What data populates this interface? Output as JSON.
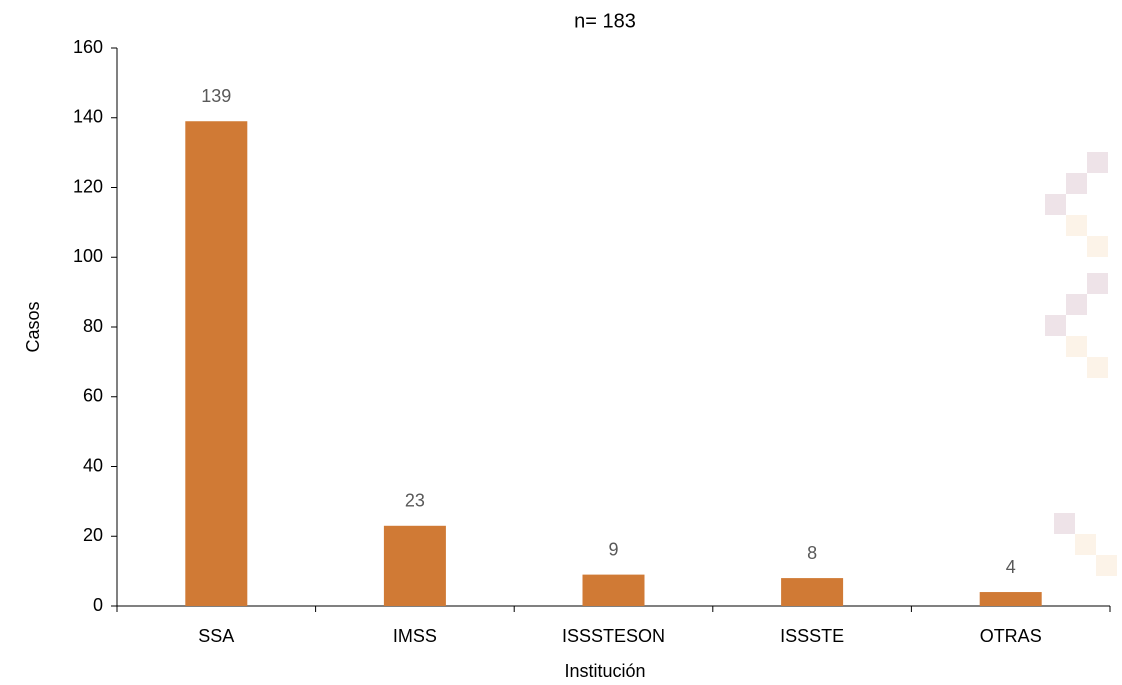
{
  "chart_data": {
    "type": "bar",
    "title": "n= 183",
    "x_label": "Institución",
    "y_label": "Casos",
    "categories": [
      "SSA",
      "IMSS",
      "ISSSTESON",
      "ISSSTE",
      "OTRAS"
    ],
    "values": [
      139,
      23,
      9,
      8,
      4
    ],
    "color": "#d07a35",
    "ylim": [
      0,
      160
    ],
    "yticks": [
      0,
      20,
      40,
      60,
      80,
      100,
      120,
      140,
      160
    ],
    "grid": false
  }
}
